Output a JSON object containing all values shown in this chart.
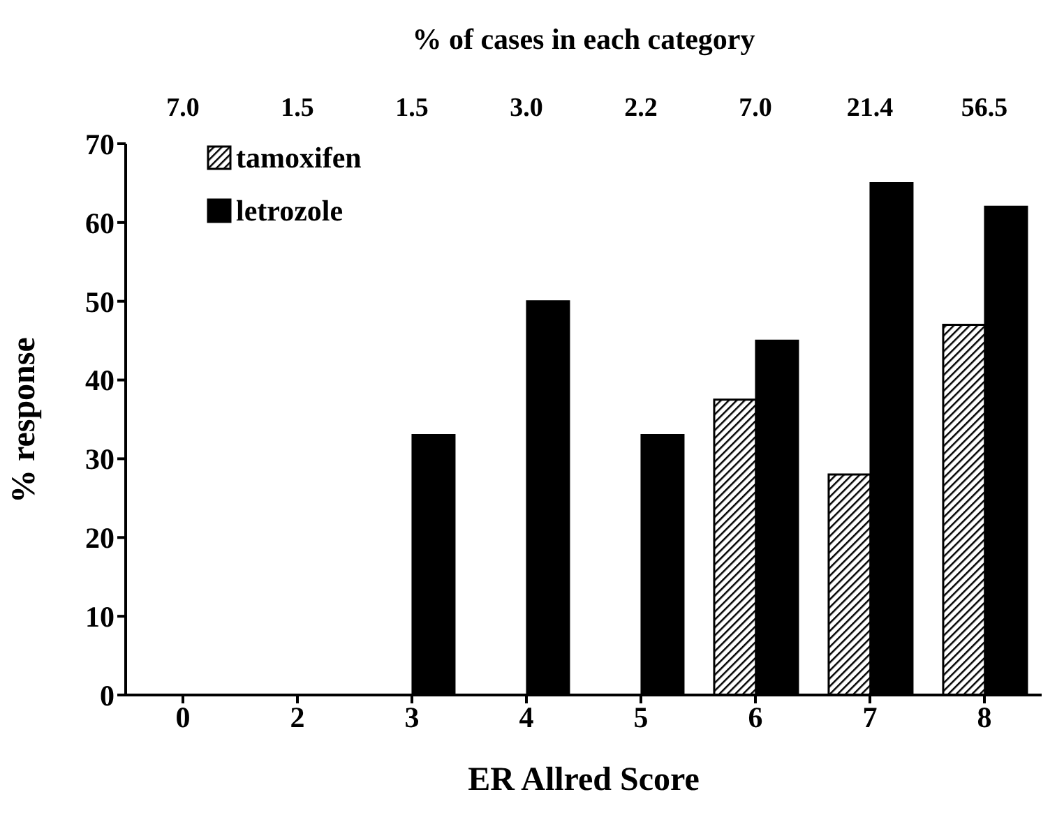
{
  "chart_data": {
    "type": "bar",
    "x2label": "% of cases in each category",
    "xlabel": "ER Allred Score",
    "ylabel": "% response",
    "categories": [
      "0",
      "2",
      "3",
      "4",
      "5",
      "6",
      "7",
      "8"
    ],
    "series": [
      {
        "name": "tamoxifen",
        "color": "#000000",
        "values": [
          0,
          0,
          0,
          0,
          0,
          37.5,
          28,
          47
        ]
      },
      {
        "name": "letrozole",
        "color": "#000000",
        "values": [
          0,
          0,
          33,
          50,
          33,
          45,
          65,
          62
        ]
      }
    ],
    "annotations": [
      "7.0",
      "1.5",
      "1.5",
      "3.0",
      "2.2",
      "7.0",
      "21.4",
      "56.5"
    ],
    "ylim": [
      0,
      70
    ],
    "yticks": [
      0,
      10,
      20,
      30,
      40,
      50,
      60,
      70
    ],
    "grid": false,
    "legend": "top left"
  }
}
